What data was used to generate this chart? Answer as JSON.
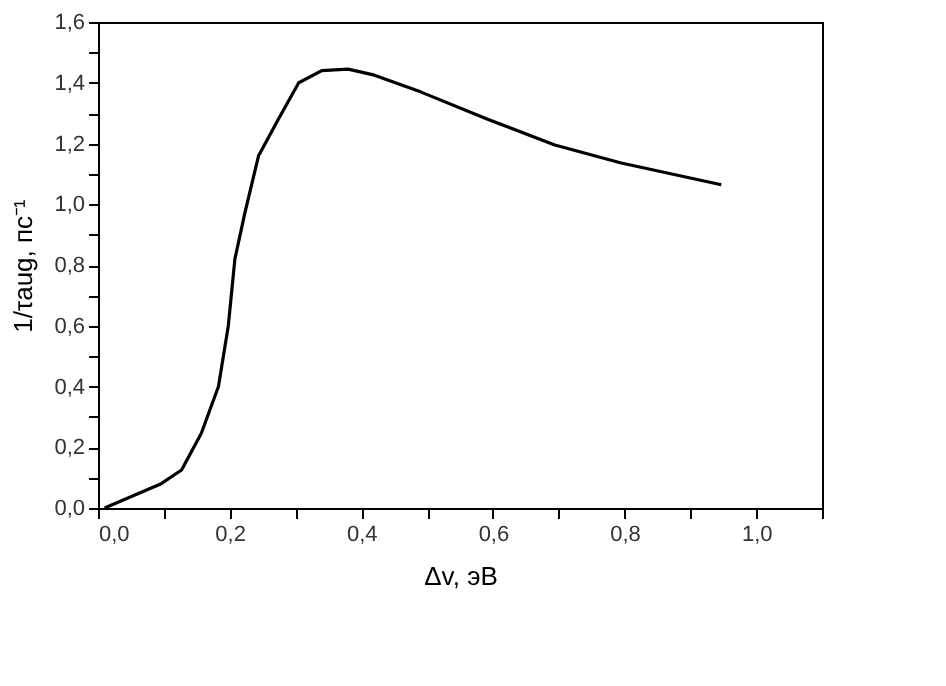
{
  "chart_data": {
    "type": "line",
    "xlabel": "Δv, эВ",
    "ylabel": "1/τaug, пс⁻¹",
    "x": [
      0.01,
      0.096,
      0.127,
      0.157,
      0.183,
      0.198,
      0.208,
      0.223,
      0.244,
      0.274,
      0.305,
      0.34,
      0.38,
      0.42,
      0.49,
      0.592,
      0.694,
      0.795,
      0.947
    ],
    "series": [
      {
        "color": "#000000",
        "values": [
          0.0,
          0.08,
          0.125,
          0.246,
          0.4,
          0.6,
          0.82,
          0.97,
          1.16,
          1.28,
          1.4,
          1.44,
          1.445,
          1.425,
          1.37,
          1.28,
          1.195,
          1.136,
          1.064
        ]
      }
    ],
    "xlim": [
      0,
      1.1
    ],
    "ylim": [
      0,
      1.6
    ],
    "xticks": [
      {
        "value": 0,
        "label": "0,0"
      },
      {
        "value": 0.1,
        "label": null
      },
      {
        "value": 0.2,
        "label": "0,2"
      },
      {
        "value": 0.3,
        "label": null
      },
      {
        "value": 0.4,
        "label": "0,4"
      },
      {
        "value": 0.5,
        "label": null
      },
      {
        "value": 0.6,
        "label": "0,6"
      },
      {
        "value": 0.7,
        "label": null
      },
      {
        "value": 0.8,
        "label": "0,8"
      },
      {
        "value": 0.9,
        "label": null
      },
      {
        "value": 1.0,
        "label": "1,0"
      },
      {
        "value": 1.1,
        "label": null
      }
    ],
    "yticks": [
      {
        "value": 0,
        "label": "0,0"
      },
      {
        "value": 0.1,
        "label": null
      },
      {
        "value": 0.2,
        "label": "0,2"
      },
      {
        "value": 0.3,
        "label": null
      },
      {
        "value": 0.4,
        "label": "0,4"
      },
      {
        "value": 0.5,
        "label": null
      },
      {
        "value": 0.6,
        "label": "0,6"
      },
      {
        "value": 0.7,
        "label": null
      },
      {
        "value": 0.8,
        "label": "0,8"
      },
      {
        "value": 0.9,
        "label": null
      },
      {
        "value": 1.0,
        "label": "1,0"
      },
      {
        "value": 1.1,
        "label": null
      },
      {
        "value": 1.2,
        "label": "1,2"
      },
      {
        "value": 1.3,
        "label": null
      },
      {
        "value": 1.4,
        "label": "1,4"
      },
      {
        "value": 1.5,
        "label": null
      },
      {
        "value": 1.6,
        "label": "1,6"
      }
    ],
    "grid": false,
    "marker": "none",
    "line_style": "solid"
  }
}
